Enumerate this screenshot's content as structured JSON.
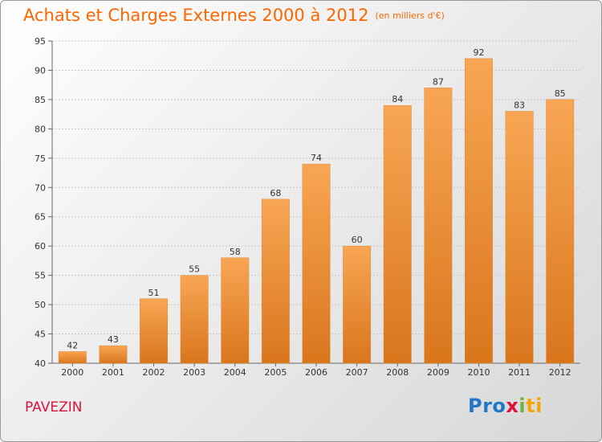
{
  "chart_data": {
    "type": "bar",
    "title": "Achats et Charges Externes 2000 à 2012",
    "unit_note": "(en milliers d'€)",
    "xlabel": "",
    "ylabel": "",
    "categories": [
      "2000",
      "2001",
      "2002",
      "2003",
      "2004",
      "2005",
      "2006",
      "2007",
      "2008",
      "2009",
      "2010",
      "2011",
      "2012"
    ],
    "values": [
      42,
      43,
      51,
      55,
      58,
      68,
      74,
      60,
      84,
      87,
      92,
      83,
      85
    ],
    "ylim": [
      40,
      95
    ],
    "yticks": [
      40,
      45,
      50,
      55,
      60,
      65,
      70,
      75,
      80,
      85,
      90,
      95
    ],
    "grid": true,
    "legend": "none",
    "colors": {
      "bar_top": "#f8a654",
      "bar_bottom": "#d9761c",
      "title": "#ff6600",
      "grid": "#c8c8c8"
    }
  },
  "commune": "PAVEZIN",
  "logo": {
    "parts": [
      "Pro",
      "x",
      "i",
      "ti"
    ]
  }
}
